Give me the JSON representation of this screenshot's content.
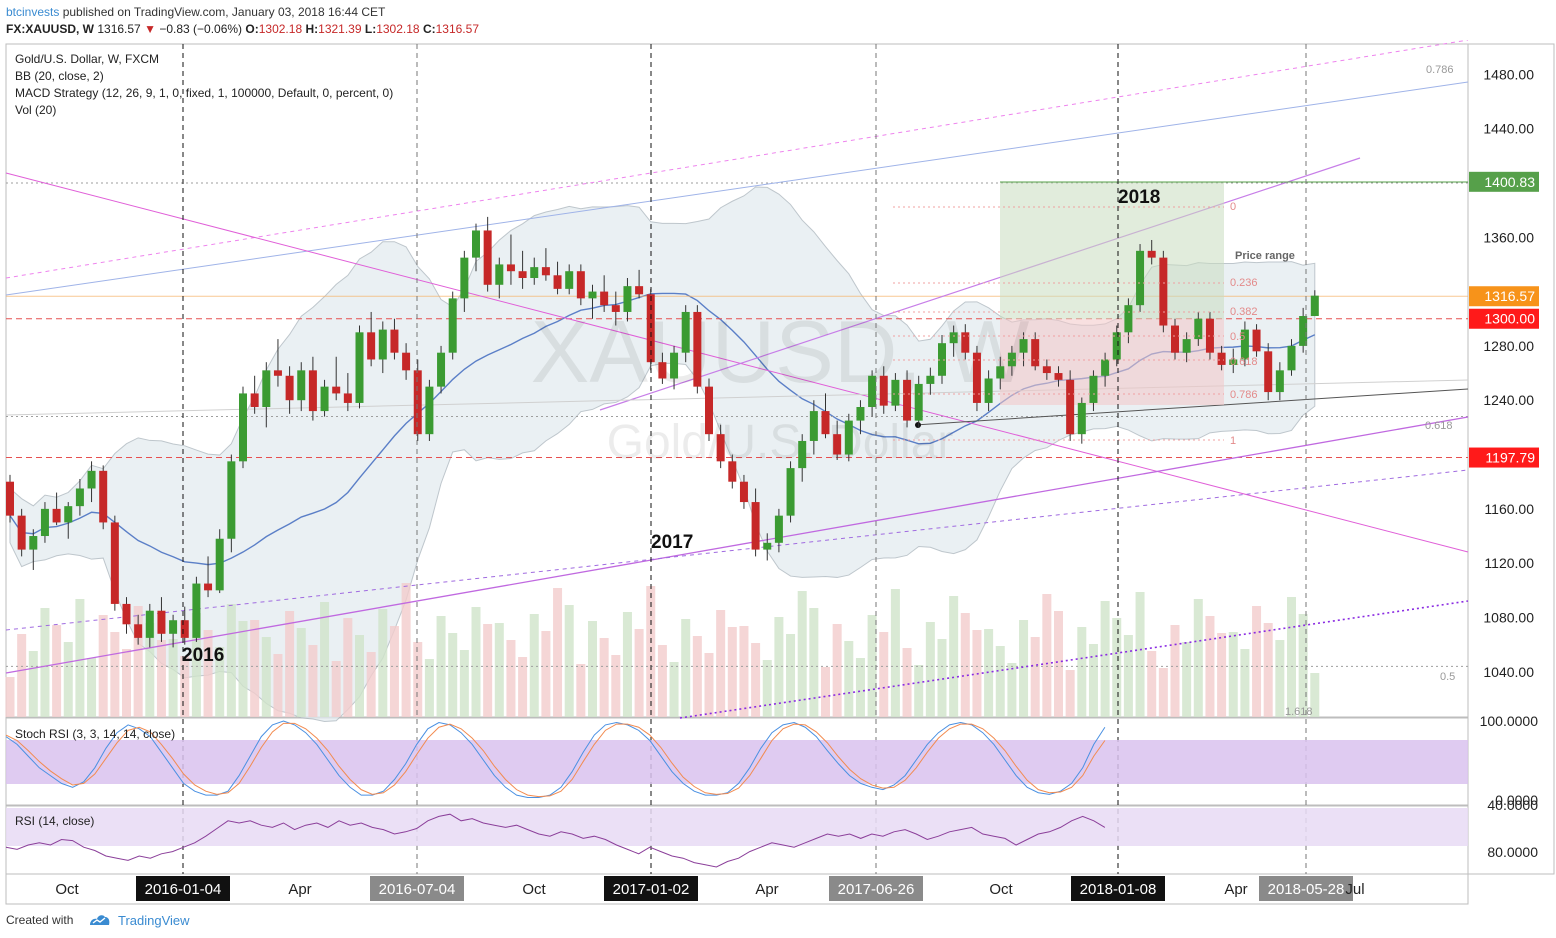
{
  "header": {
    "author": "btcinvests",
    "published": "published on TradingView.com, January 03, 2018 16:44 CET",
    "symbol": "FX:XAUUSD, W",
    "last": "1316.57",
    "change_arrow": "▼",
    "change": "−0.83 (−0.06%)",
    "o_label": "O:",
    "o_value": "1302.18",
    "h_label": "H:",
    "h_value": "1321.39",
    "l_label": "L:",
    "l_value": "1302.18",
    "c_label": "C:",
    "c_value": "1316.57"
  },
  "legend": {
    "title": "Gold/U.S. Dollar, W, FXCM",
    "bb": "BB (20, close, 2)",
    "macd": "MACD Strategy (12, 26, 9, 1, 0, fixed, 1, 100000, Default, 0, percent, 0)",
    "vol": "Vol (20)",
    "stoch": "Stoch RSI (3, 3, 14, 14, close)",
    "rsi": "RSI (14, close)"
  },
  "watermark": {
    "symbol": "XAUUSD, W",
    "name": "Gold/U.S. Dollar"
  },
  "annotations": {
    "year_2016": "2016",
    "year_2017": "2017",
    "year_2018": "2018",
    "price_range": "Price range",
    "fib_levels": [
      "0",
      "0.236",
      "0.382",
      "0.5",
      "0.618",
      "0.786",
      "1"
    ],
    "fib_right": [
      "0.786",
      "0.618",
      "0.5",
      "1.618"
    ]
  },
  "price_labels": {
    "target": "1400.83",
    "last": "1316.57",
    "level_1300": "1300.00",
    "level_1197": "1197.79"
  },
  "colors": {
    "up": "#3b9b32",
    "down": "#c62828",
    "bb_fill": "#e3ebf0",
    "target_green": "#56a04a",
    "last_orange": "#f7931a",
    "level_red": "#ff1a1a",
    "stoch_band": "#d9c2ee",
    "rsi_band": "#e8dbf5",
    "axis_dark": "#111111",
    "axis_grey": "#8a8a8a"
  },
  "footer": {
    "created_with": "Created with",
    "brand": "TradingView"
  },
  "chart_data": [
    {
      "type": "candlestick",
      "title": "Gold/U.S. Dollar, W, FXCM",
      "y_unit": "USD",
      "yticks": [
        1040,
        1080,
        1120,
        1160,
        1200,
        1240,
        1280,
        1320,
        1360,
        1400,
        1440,
        1480
      ],
      "ytick_labels": [
        "1040.00",
        "1080.00",
        "1120.00",
        "1160.00",
        "1200.00",
        "1240.00",
        "1280.00",
        "1320.00",
        "1360.00",
        "1400.00",
        "1440.00",
        "1480.00"
      ],
      "ylim": [
        1008,
        1500
      ],
      "x_labels": [
        "Oct",
        "2016-01-04",
        "Apr",
        "2016-07-04",
        "Oct",
        "2017-01-02",
        "Apr",
        "2017-06-26",
        "Oct",
        "2018-01-08",
        "Apr",
        "2018-05-28",
        "Jul"
      ],
      "x_label_highlight": [
        "",
        "dark",
        "",
        "grey",
        "",
        "dark",
        "",
        "grey",
        "",
        "dark",
        "",
        "grey",
        ""
      ],
      "bars": [
        [
          1180,
          1185,
          1150,
          1155
        ],
        [
          1155,
          1160,
          1125,
          1130
        ],
        [
          1130,
          1145,
          1115,
          1140
        ],
        [
          1140,
          1165,
          1135,
          1160
        ],
        [
          1160,
          1172,
          1148,
          1150
        ],
        [
          1150,
          1165,
          1138,
          1162
        ],
        [
          1162,
          1182,
          1155,
          1175
        ],
        [
          1175,
          1195,
          1165,
          1188
        ],
        [
          1188,
          1192,
          1145,
          1150
        ],
        [
          1150,
          1155,
          1085,
          1090
        ],
        [
          1090,
          1095,
          1068,
          1075
        ],
        [
          1075,
          1082,
          1060,
          1065
        ],
        [
          1065,
          1090,
          1058,
          1085
        ],
        [
          1085,
          1095,
          1062,
          1068
        ],
        [
          1068,
          1082,
          1058,
          1078
        ],
        [
          1078,
          1088,
          1060,
          1065
        ],
        [
          1065,
          1110,
          1062,
          1105
        ],
        [
          1105,
          1125,
          1095,
          1100
        ],
        [
          1100,
          1145,
          1098,
          1138
        ],
        [
          1138,
          1200,
          1128,
          1195
        ],
        [
          1195,
          1250,
          1190,
          1245
        ],
        [
          1245,
          1258,
          1230,
          1235
        ],
        [
          1235,
          1268,
          1220,
          1262
        ],
        [
          1262,
          1285,
          1250,
          1258
        ],
        [
          1258,
          1265,
          1230,
          1240
        ],
        [
          1240,
          1268,
          1232,
          1262
        ],
        [
          1262,
          1272,
          1225,
          1232
        ],
        [
          1232,
          1255,
          1228,
          1250
        ],
        [
          1250,
          1272,
          1240,
          1245
        ],
        [
          1245,
          1260,
          1232,
          1238
        ],
        [
          1238,
          1295,
          1234,
          1290
        ],
        [
          1290,
          1305,
          1265,
          1270
        ],
        [
          1270,
          1298,
          1260,
          1292
        ],
        [
          1292,
          1300,
          1270,
          1275
        ],
        [
          1275,
          1282,
          1255,
          1262
        ],
        [
          1262,
          1270,
          1210,
          1215
        ],
        [
          1215,
          1255,
          1210,
          1250
        ],
        [
          1250,
          1280,
          1245,
          1275
        ],
        [
          1275,
          1320,
          1270,
          1315
        ],
        [
          1315,
          1350,
          1305,
          1345
        ],
        [
          1345,
          1370,
          1335,
          1365
        ],
        [
          1365,
          1375,
          1320,
          1325
        ],
        [
          1325,
          1345,
          1315,
          1340
        ],
        [
          1340,
          1362,
          1325,
          1335
        ],
        [
          1335,
          1350,
          1322,
          1330
        ],
        [
          1330,
          1345,
          1325,
          1338
        ],
        [
          1338,
          1352,
          1328,
          1332
        ],
        [
          1332,
          1342,
          1318,
          1322
        ],
        [
          1322,
          1340,
          1318,
          1335
        ],
        [
          1335,
          1340,
          1310,
          1315
        ],
        [
          1315,
          1325,
          1300,
          1320
        ],
        [
          1320,
          1332,
          1305,
          1310
        ],
        [
          1310,
          1320,
          1295,
          1305
        ],
        [
          1305,
          1330,
          1298,
          1324
        ],
        [
          1324,
          1336,
          1315,
          1318
        ],
        [
          1318,
          1322,
          1262,
          1268
        ],
        [
          1268,
          1275,
          1252,
          1256
        ],
        [
          1256,
          1280,
          1248,
          1275
        ],
        [
          1275,
          1310,
          1268,
          1305
        ],
        [
          1305,
          1310,
          1245,
          1250
        ],
        [
          1250,
          1256,
          1210,
          1215
        ],
        [
          1215,
          1222,
          1190,
          1195
        ],
        [
          1195,
          1200,
          1175,
          1180
        ],
        [
          1180,
          1185,
          1160,
          1165
        ],
        [
          1165,
          1175,
          1125,
          1130
        ],
        [
          1130,
          1142,
          1122,
          1135
        ],
        [
          1135,
          1160,
          1128,
          1155
        ],
        [
          1155,
          1195,
          1150,
          1190
        ],
        [
          1190,
          1215,
          1180,
          1210
        ],
        [
          1210,
          1240,
          1200,
          1232
        ],
        [
          1232,
          1245,
          1212,
          1215
        ],
        [
          1215,
          1225,
          1196,
          1200
        ],
        [
          1200,
          1230,
          1195,
          1225
        ],
        [
          1225,
          1240,
          1215,
          1235
        ],
        [
          1235,
          1262,
          1228,
          1258
        ],
        [
          1258,
          1265,
          1230,
          1236
        ],
        [
          1236,
          1260,
          1232,
          1255
        ],
        [
          1255,
          1262,
          1220,
          1225
        ],
        [
          1225,
          1258,
          1220,
          1252
        ],
        [
          1252,
          1264,
          1244,
          1258
        ],
        [
          1258,
          1288,
          1252,
          1282
        ],
        [
          1282,
          1295,
          1272,
          1290
        ],
        [
          1290,
          1296,
          1270,
          1275
        ],
        [
          1275,
          1280,
          1232,
          1238
        ],
        [
          1238,
          1262,
          1232,
          1256
        ],
        [
          1256,
          1272,
          1248,
          1265
        ],
        [
          1265,
          1280,
          1258,
          1275
        ],
        [
          1275,
          1290,
          1265,
          1285
        ],
        [
          1285,
          1290,
          1262,
          1265
        ],
        [
          1265,
          1270,
          1255,
          1260
        ],
        [
          1260,
          1265,
          1250,
          1255
        ],
        [
          1255,
          1262,
          1210,
          1215
        ],
        [
          1215,
          1242,
          1208,
          1238
        ],
        [
          1238,
          1262,
          1232,
          1258
        ],
        [
          1258,
          1275,
          1250,
          1270
        ],
        [
          1270,
          1295,
          1265,
          1290
        ],
        [
          1290,
          1315,
          1282,
          1310
        ],
        [
          1310,
          1355,
          1305,
          1350
        ],
        [
          1350,
          1358,
          1340,
          1345
        ],
        [
          1345,
          1350,
          1290,
          1295
        ],
        [
          1295,
          1300,
          1270,
          1275
        ],
        [
          1275,
          1290,
          1268,
          1285
        ],
        [
          1285,
          1305,
          1280,
          1300
        ],
        [
          1300,
          1305,
          1270,
          1275
        ],
        [
          1275,
          1280,
          1262,
          1266
        ],
        [
          1266,
          1278,
          1260,
          1270
        ],
        [
          1270,
          1298,
          1265,
          1292
        ],
        [
          1292,
          1296,
          1272,
          1276
        ],
        [
          1276,
          1282,
          1240,
          1246
        ],
        [
          1246,
          1268,
          1240,
          1262
        ],
        [
          1262,
          1285,
          1258,
          1280
        ],
        [
          1280,
          1308,
          1275,
          1302
        ],
        [
          1302,
          1321,
          1302,
          1317
        ]
      ],
      "levels": {
        "target": 1400.83,
        "last": 1316.57,
        "red_1300": 1300.0,
        "red_1197": 1197.79
      }
    },
    {
      "type": "line",
      "title": "Stoch RSI (3, 3, 14, 14, close)",
      "yticks": [
        0,
        100
      ],
      "ytick_labels": [
        "0.0000",
        "100.0000"
      ],
      "ylim": [
        -5,
        105
      ],
      "band": [
        20,
        80
      ],
      "series": [
        {
          "values": [
            80,
            70,
            55,
            40,
            30,
            20,
            15,
            22,
            40,
            65,
            85,
            95,
            90,
            80,
            60,
            40,
            20,
            10,
            5,
            5,
            10,
            30,
            55,
            80,
            95,
            100,
            95,
            85,
            70,
            50,
            30,
            15,
            5,
            5,
            10,
            25,
            45,
            70,
            90,
            98,
            95,
            85,
            70,
            50,
            30,
            15,
            5,
            2,
            2,
            5,
            15,
            35,
            60,
            82,
            95,
            98,
            95,
            88,
            75,
            55,
            35,
            20,
            10,
            5,
            5,
            8,
            20,
            40,
            65,
            85,
            95,
            98,
            92,
            80,
            62,
            45,
            30,
            20,
            15,
            12,
            18,
            30,
            50,
            70,
            85,
            95,
            98,
            95,
            85,
            70,
            50,
            30,
            15,
            8,
            6,
            10,
            20,
            40,
            70,
            92
          ]
        },
        {
          "values": [
            82,
            75,
            62,
            48,
            36,
            26,
            18,
            20,
            32,
            52,
            72,
            88,
            92,
            86,
            70,
            52,
            32,
            18,
            10,
            6,
            8,
            20,
            42,
            66,
            86,
            97,
            97,
            90,
            78,
            62,
            42,
            25,
            12,
            6,
            8,
            18,
            35,
            57,
            78,
            92,
            96,
            90,
            78,
            62,
            42,
            25,
            12,
            5,
            3,
            4,
            10,
            25,
            48,
            70,
            88,
            96,
            96,
            92,
            82,
            66,
            46,
            28,
            16,
            8,
            6,
            7,
            14,
            30,
            52,
            75,
            90,
            96,
            95,
            86,
            72,
            54,
            38,
            26,
            18,
            14,
            15,
            24,
            40,
            60,
            78,
            90,
            96,
            96,
            90,
            78,
            62,
            42,
            24,
            12,
            8,
            9,
            15,
            30,
            55,
            75
          ]
        }
      ]
    },
    {
      "type": "line",
      "title": "RSI (14, close)",
      "yticks": [
        40,
        80
      ],
      "ytick_labels": [
        "40.0000",
        "80.0000"
      ],
      "ylim": [
        22,
        100
      ],
      "band": [
        50,
        90
      ],
      "series": [
        {
          "values": [
            48,
            46,
            50,
            52,
            50,
            55,
            54,
            48,
            45,
            40,
            38,
            36,
            40,
            38,
            42,
            44,
            48,
            52,
            58,
            65,
            72,
            70,
            72,
            68,
            66,
            70,
            64,
            68,
            70,
            66,
            72,
            68,
            70,
            66,
            64,
            60,
            62,
            65,
            72,
            76,
            78,
            72,
            74,
            70,
            68,
            66,
            68,
            64,
            60,
            58,
            62,
            60,
            56,
            58,
            55,
            50,
            46,
            42,
            48,
            44,
            40,
            38,
            34,
            32,
            30,
            35,
            38,
            44,
            48,
            52,
            50,
            48,
            52,
            56,
            60,
            58,
            60,
            56,
            60,
            58,
            62,
            64,
            60,
            55,
            58,
            62,
            64,
            66,
            60,
            58,
            56,
            50,
            55,
            60,
            62,
            66,
            72,
            76,
            72,
            66
          ]
        }
      ]
    }
  ]
}
